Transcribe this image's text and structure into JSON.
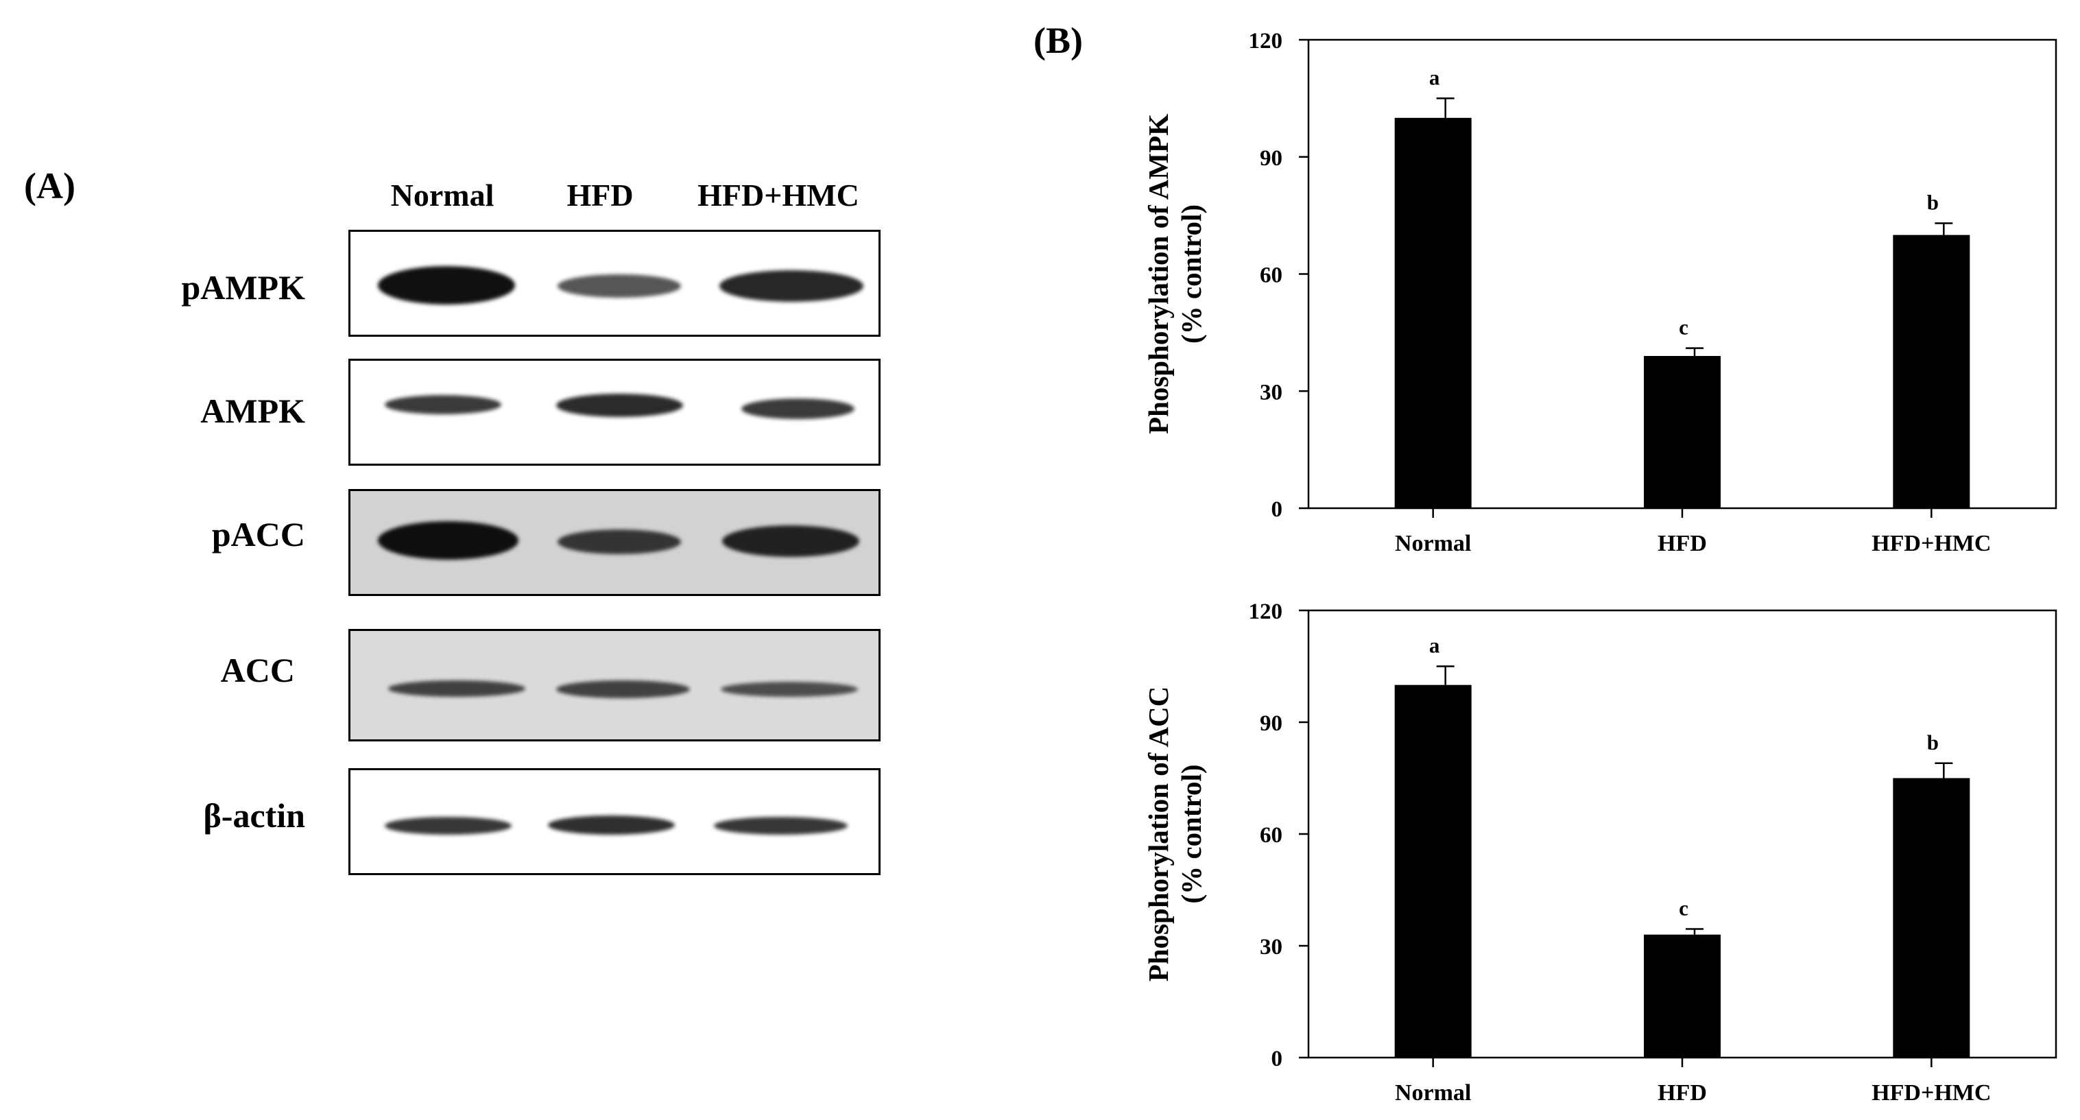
{
  "panel_a": {
    "label": "(A)",
    "lanes": [
      "Normal",
      "HFD",
      "HFD+HMC"
    ],
    "blots": [
      {
        "label": "pAMPK",
        "background": "#ffffff",
        "band_color": "#101010",
        "intensities": [
          1.0,
          0.55,
          0.85
        ]
      },
      {
        "label": "AMPK",
        "background": "#ffffff",
        "band_color": "#151515",
        "intensities": [
          0.75,
          0.85,
          0.75
        ]
      },
      {
        "label": "pACC",
        "background": "#d2d2d2",
        "band_color": "#0e0e0e",
        "intensities": [
          1.0,
          0.7,
          0.85
        ]
      },
      {
        "label": "ACC",
        "background": "#dadada",
        "band_color": "#1c1c1c",
        "intensities": [
          0.7,
          0.7,
          0.6
        ]
      },
      {
        "label": "β-actin",
        "background": "#ffffff",
        "band_color": "#111111",
        "intensities": [
          0.75,
          0.8,
          0.75
        ]
      }
    ]
  },
  "panel_b": {
    "label": "(B)"
  },
  "chart_data": [
    {
      "type": "bar",
      "categories": [
        "Normal",
        "HFD",
        "HFD+HMC"
      ],
      "values": [
        100,
        39,
        70
      ],
      "errors": [
        5,
        2,
        3
      ],
      "letters": [
        "a",
        "c",
        "b"
      ],
      "ylabel": "Phosphorylation of AMPK",
      "ylabel2": "(% control)",
      "ylim": [
        0,
        120
      ],
      "yticks": [
        0,
        30,
        60,
        90,
        120
      ],
      "bar_color": "#000000",
      "grid": false
    },
    {
      "type": "bar",
      "categories": [
        "Normal",
        "HFD",
        "HFD+HMC"
      ],
      "values": [
        100,
        33,
        75
      ],
      "errors": [
        5,
        1.5,
        4
      ],
      "letters": [
        "a",
        "c",
        "b"
      ],
      "ylabel": "Phosphorylation of ACC",
      "ylabel2": "(% control)",
      "ylim": [
        0,
        120
      ],
      "yticks": [
        0,
        30,
        60,
        90,
        120
      ],
      "bar_color": "#000000",
      "grid": false
    }
  ]
}
